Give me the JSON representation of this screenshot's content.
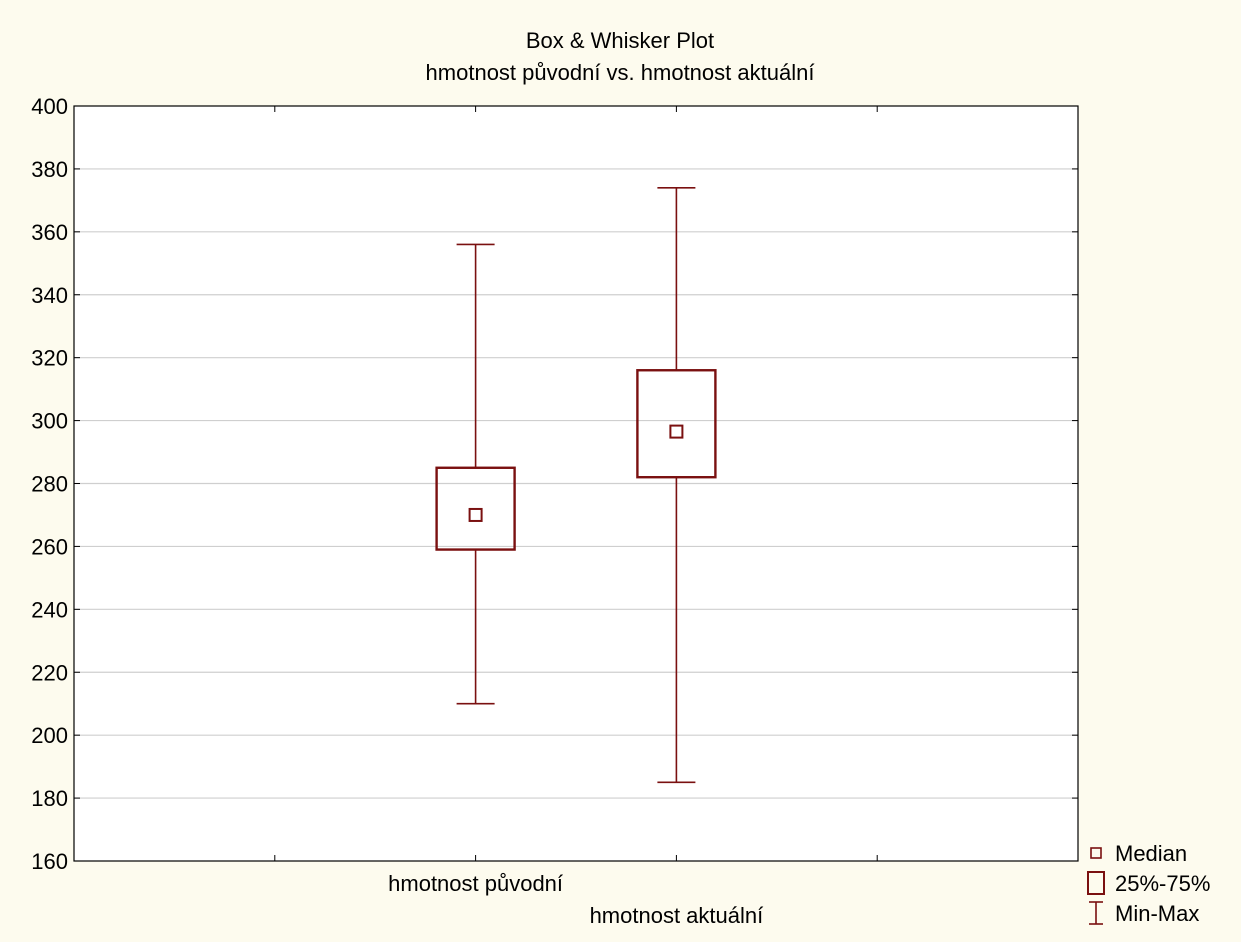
{
  "chart_data": {
    "type": "box",
    "title": "Box & Whisker Plot",
    "subtitle": "hmotnost původní vs. hmotnost aktuální",
    "ylim": [
      160,
      400
    ],
    "yticks": [
      160,
      180,
      200,
      220,
      240,
      260,
      280,
      300,
      320,
      340,
      360,
      380,
      400
    ],
    "grid": true,
    "categories": [
      "hmotnost původní",
      "hmotnost aktuální"
    ],
    "series": [
      {
        "category": "hmotnost původní",
        "min": 210,
        "q1": 259,
        "median": 270,
        "q3": 285,
        "max": 356
      },
      {
        "category": "hmotnost aktuální",
        "min": 185,
        "q1": 282,
        "median": 296.5,
        "q3": 316,
        "max": 374
      }
    ],
    "legend": {
      "position": "bottom-right",
      "items": [
        {
          "label": "Median",
          "symbol": "median"
        },
        {
          "label": "25%-75%",
          "symbol": "box"
        },
        {
          "label": "Min-Max",
          "symbol": "whisker"
        }
      ]
    },
    "colors": {
      "series": "#7a1010",
      "background": "#fdfbee",
      "plot_background": "#ffffff",
      "grid": "#cfcfcf"
    }
  }
}
